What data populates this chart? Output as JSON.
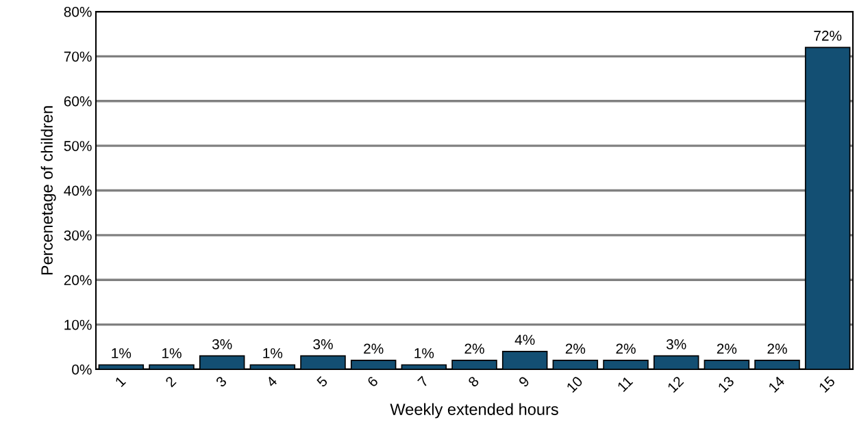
{
  "chart_data": {
    "type": "bar",
    "xlabel": "Weekly extended hours",
    "ylabel": "Percenetage of children",
    "categories": [
      "1",
      "2",
      "3",
      "4",
      "5",
      "6",
      "7",
      "8",
      "9",
      "10",
      "11",
      "12",
      "13",
      "14",
      "15"
    ],
    "values": [
      1,
      1,
      3,
      1,
      3,
      2,
      1,
      2,
      4,
      2,
      2,
      3,
      2,
      2,
      72
    ],
    "value_labels": [
      "1%",
      "1%",
      "3%",
      "1%",
      "3%",
      "2%",
      "1%",
      "2%",
      "4%",
      "2%",
      "2%",
      "3%",
      "2%",
      "2%",
      "72%"
    ],
    "color": "#134f73",
    "ylim": [
      0,
      80
    ],
    "yticks": [
      {
        "value": 0,
        "label": "0%"
      },
      {
        "value": 10,
        "label": "10%"
      },
      {
        "value": 20,
        "label": "20%"
      },
      {
        "value": 30,
        "label": "30%"
      },
      {
        "value": 40,
        "label": "40%"
      },
      {
        "value": 50,
        "label": "50%"
      },
      {
        "value": 60,
        "label": "60%"
      },
      {
        "value": 70,
        "label": "70%"
      },
      {
        "value": 80,
        "label": "80%"
      }
    ],
    "grid": "y",
    "legend": false
  }
}
